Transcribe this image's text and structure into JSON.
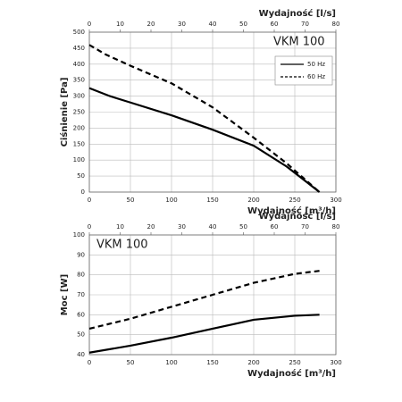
{
  "chart_data": [
    {
      "type": "line",
      "annotation": "VKM 100",
      "ylabel": "Ciśnienie [Pa]",
      "xlabel": "Wydajność [m³/h]",
      "x2label": "Wydajność [l/s]",
      "xlim": [
        0,
        300
      ],
      "xticks": [
        0,
        50,
        100,
        150,
        200,
        250,
        300
      ],
      "x2lim": [
        0,
        80
      ],
      "x2ticks": [
        0,
        10,
        20,
        30,
        40,
        50,
        60,
        70,
        80
      ],
      "ylim": [
        0,
        500
      ],
      "yticks": [
        0,
        50,
        100,
        150,
        200,
        250,
        300,
        350,
        400,
        450,
        500
      ],
      "grid": true,
      "legend": "upper right",
      "series": [
        {
          "name": "50 Hz",
          "color": "#000000",
          "dashed": false,
          "x": [
            0,
            25,
            50,
            100,
            150,
            200,
            240,
            260,
            280
          ],
          "values": [
            325,
            300,
            280,
            240,
            195,
            145,
            80,
            40,
            0
          ]
        },
        {
          "name": "60 Hz",
          "color": "#000000",
          "dashed": true,
          "x": [
            0,
            20,
            50,
            100,
            150,
            200,
            240,
            260,
            280
          ],
          "values": [
            460,
            430,
            395,
            340,
            265,
            170,
            90,
            45,
            0
          ]
        }
      ]
    },
    {
      "type": "line",
      "annotation": "VKM 100",
      "ylabel": "Moc [W]",
      "xlabel": "Wydajność [m³/h]",
      "x2label": "Wydajność [l/s]",
      "xlim": [
        0,
        300
      ],
      "xticks": [
        0,
        50,
        100,
        150,
        200,
        250,
        300
      ],
      "x2lim": [
        0,
        80
      ],
      "x2ticks": [
        0,
        10,
        20,
        30,
        40,
        50,
        60,
        70,
        80
      ],
      "ylim": [
        40,
        100
      ],
      "yticks": [
        40,
        50,
        60,
        70,
        80,
        90,
        100
      ],
      "grid": true,
      "series": [
        {
          "color": "#000000",
          "dashed": false,
          "x": [
            0,
            50,
            100,
            150,
            200,
            250,
            280
          ],
          "values": [
            41,
            44.5,
            48.5,
            53,
            57.5,
            59.5,
            60
          ]
        },
        {
          "color": "#000000",
          "dashed": true,
          "x": [
            0,
            50,
            100,
            150,
            200,
            250,
            280
          ],
          "values": [
            53,
            58,
            64,
            70,
            76,
            80.5,
            82
          ]
        }
      ]
    }
  ]
}
